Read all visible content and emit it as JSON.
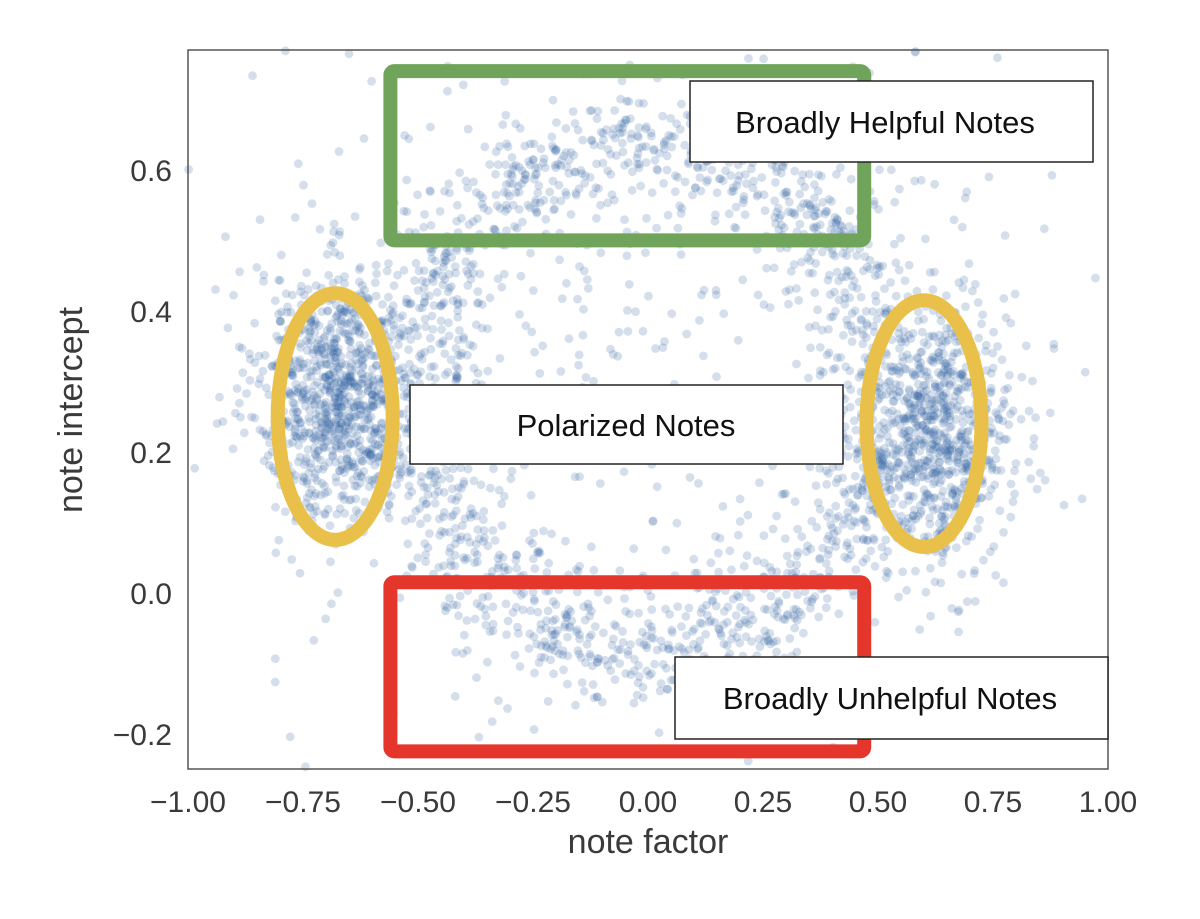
{
  "chart_data": {
    "type": "scatter",
    "xlabel": "note factor",
    "ylabel": "note intercept",
    "xlim": [
      -1.0,
      1.0
    ],
    "ylim": [
      -0.25,
      0.77
    ],
    "x_ticks": [
      "−1.00",
      "−0.75",
      "−0.50",
      "−0.25",
      "0.00",
      "0.25",
      "0.50",
      "0.75",
      "1.00"
    ],
    "x_tick_values": [
      -1.0,
      -0.75,
      -0.5,
      -0.25,
      0.0,
      0.25,
      0.5,
      0.75,
      1.0
    ],
    "y_ticks": [
      "−0.2",
      "0.0",
      "0.2",
      "0.4",
      "0.6"
    ],
    "y_tick_values": [
      -0.2,
      0.0,
      0.2,
      0.4,
      0.6
    ],
    "grid": false,
    "point_color": "#2f5f9e",
    "point_opacity": 0.2,
    "clusters": [
      {
        "shape": "ellipse",
        "center": [
          -0.67,
          0.28
        ],
        "radius": [
          0.09,
          0.09
        ],
        "count": 900
      },
      {
        "shape": "ellipse",
        "center": [
          0.63,
          0.22
        ],
        "radius": [
          0.08,
          0.09
        ],
        "count": 750
      },
      {
        "shape": "ring",
        "center": [
          0.0,
          0.28
        ],
        "radius": [
          0.5,
          0.36
        ],
        "count": 1400
      },
      {
        "shape": "ellipse",
        "center": [
          0.0,
          0.35
        ],
        "radius": [
          0.4,
          0.3
        ],
        "count": 520
      },
      {
        "shape": "ellipse",
        "center": [
          0.0,
          0.25
        ],
        "radius": [
          0.78,
          0.35
        ],
        "count": 110
      }
    ],
    "annotations": [
      {
        "type": "rect",
        "label": "Broadly Helpful Notes",
        "x_range": [
          -0.56,
          0.47
        ],
        "y_range": [
          0.5,
          0.74
        ],
        "color": "#6fa45a"
      },
      {
        "type": "rect",
        "label": "Broadly Unhelpful Notes",
        "x_range": [
          -0.56,
          0.47
        ],
        "y_range": [
          -0.225,
          0.015
        ],
        "color": "#e5362b"
      },
      {
        "type": "circle",
        "label": "Polarized Notes",
        "center": [
          -0.68,
          0.25
        ],
        "radius_x": 0.125,
        "radius_y": 0.175,
        "color": "#e8c04a"
      },
      {
        "type": "circle",
        "label": "Polarized Notes",
        "center": [
          0.6,
          0.24
        ],
        "radius_x": 0.125,
        "radius_y": 0.175,
        "color": "#e8c04a"
      }
    ],
    "labels": {
      "helpful": "Broadly Helpful Notes",
      "polarized": "Polarized Notes",
      "unhelpful": "Broadly Unhelpful Notes"
    }
  }
}
